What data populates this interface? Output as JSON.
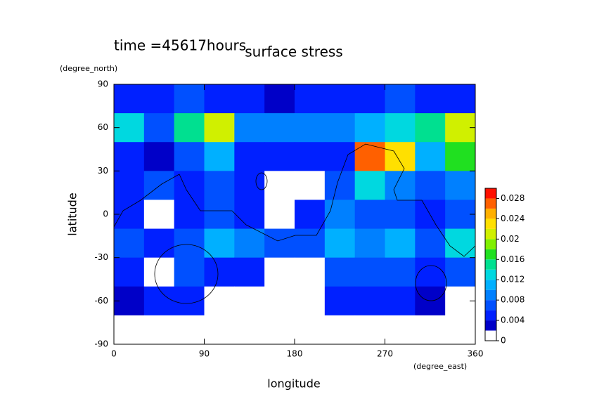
{
  "chart_data": {
    "type": "contour",
    "title": "surface stress",
    "subtitle": "time =45617hours",
    "x_label": "longitude",
    "x_unit": "(degree_east)",
    "y_label": "latitude",
    "y_unit": "(degree_north)",
    "xlim": [
      0,
      360
    ],
    "ylim": [
      -90,
      90
    ],
    "xticks": [
      0,
      90,
      180,
      270,
      360
    ],
    "yticks": [
      90,
      60,
      30,
      0,
      -30,
      -60,
      -90
    ],
    "x": [
      15,
      45,
      75,
      105,
      135,
      165,
      195,
      225,
      255,
      285,
      315,
      345
    ],
    "y": [
      80,
      60,
      40,
      20,
      0,
      -20,
      -40,
      -60,
      -80
    ],
    "z": [
      [
        0.004,
        0.004,
        0.006,
        0.004,
        0.004,
        0.003,
        0.004,
        0.004,
        0.004,
        0.006,
        0.004,
        0.004
      ],
      [
        0.012,
        0.006,
        0.014,
        0.02,
        0.008,
        0.008,
        0.008,
        0.008,
        0.01,
        0.012,
        0.014,
        0.02
      ],
      [
        0.004,
        0.002,
        0.006,
        0.01,
        0.004,
        0.004,
        0.004,
        0.004,
        0.026,
        0.022,
        0.01,
        0.016
      ],
      [
        0.004,
        0.006,
        0.004,
        0.006,
        0.004,
        0.001,
        0.001,
        0.006,
        0.012,
        0.008,
        0.006,
        0.008
      ],
      [
        0.004,
        0.001,
        0.004,
        0.006,
        0.004,
        0.001,
        0.004,
        0.008,
        0.006,
        0.006,
        0.004,
        0.006
      ],
      [
        0.006,
        0.004,
        0.006,
        0.01,
        0.008,
        0.006,
        0.006,
        0.01,
        0.008,
        0.01,
        0.006,
        0.012
      ],
      [
        0.004,
        0.001,
        0.006,
        0.004,
        0.004,
        0.001,
        0.001,
        0.006,
        0.006,
        0.006,
        0.004,
        0.006
      ],
      [
        0.003,
        0.004,
        0.004,
        0.001,
        0.001,
        0.001,
        0.001,
        0.004,
        0.004,
        0.004,
        0.003,
        0.001
      ],
      [
        0,
        0,
        0,
        0,
        0,
        0,
        0,
        0,
        0.001,
        0,
        0,
        0
      ]
    ],
    "colorbar": {
      "levels": [
        0,
        0.002,
        0.004,
        0.006,
        0.008,
        0.01,
        0.012,
        0.014,
        0.016,
        0.018,
        0.02,
        0.022,
        0.024,
        0.026,
        0.028,
        0.03
      ],
      "colors": [
        "#ffffff",
        "#0000c8",
        "#0020ff",
        "#0050ff",
        "#0080ff",
        "#00b0ff",
        "#00d8e0",
        "#00e090",
        "#20e020",
        "#80f000",
        "#d0f000",
        "#ffe000",
        "#ffb000",
        "#ff6000",
        "#ff1000"
      ],
      "ticks": [
        0,
        0.004,
        0.008,
        0.012,
        0.016,
        0.02,
        0.024,
        0.028
      ]
    }
  }
}
